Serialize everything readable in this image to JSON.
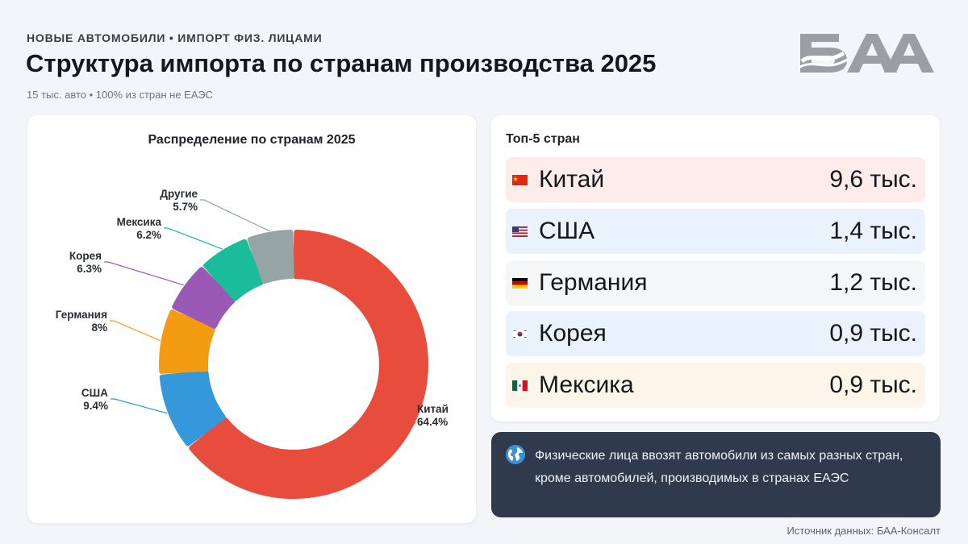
{
  "header": {
    "eyebrow": "НОВЫЕ АВТОМОБИЛИ • ИМПОРТ ФИЗ. ЛИЦАМИ",
    "title": "Структура импорта по странам производства 2025",
    "subtitle": "15 тыс. авто • 100% из стран не ЕАЭС",
    "logo_text": "БАА"
  },
  "chart_data": {
    "type": "pie",
    "title": "Распределение по странам 2025",
    "donut": true,
    "categories": [
      "Китай",
      "США",
      "Германия",
      "Корея",
      "Мексика",
      "Другие"
    ],
    "values": [
      64.4,
      9.4,
      8,
      6.3,
      6.2,
      5.7
    ],
    "value_labels": [
      "64.4%",
      "9.4%",
      "8%",
      "6.3%",
      "6.2%",
      "5.7%"
    ],
    "colors": [
      "#e74c3c",
      "#3498db",
      "#f39c12",
      "#9b59b6",
      "#1abc9c",
      "#95a5a6"
    ]
  },
  "top5": {
    "title": "Топ-5 стран",
    "rows": [
      {
        "name": "Китай",
        "value": "9,6 тыс.",
        "bg": "#fdecea",
        "flag": "china-flag-icon"
      },
      {
        "name": "США",
        "value": "1,4 тыс.",
        "bg": "#eaf3fd",
        "flag": "usa-flag-icon"
      },
      {
        "name": "Германия",
        "value": "1,2 тыс.",
        "bg": "#f5f6f8",
        "flag": "germany-flag-icon"
      },
      {
        "name": "Корея",
        "value": "0,9 тыс.",
        "bg": "#eaf3fd",
        "flag": "korea-flag-icon"
      },
      {
        "name": "Мексика",
        "value": "0,9 тыс.",
        "bg": "#fdf5e9",
        "flag": "mexico-flag-icon"
      }
    ]
  },
  "note": {
    "icon": "globe-icon",
    "text": "Физические лица ввозят автомобили из самых разных стран, кроме автомобилей, производимых в странах ЕАЭС"
  },
  "source": "Источник данных: БАА-Консалт"
}
